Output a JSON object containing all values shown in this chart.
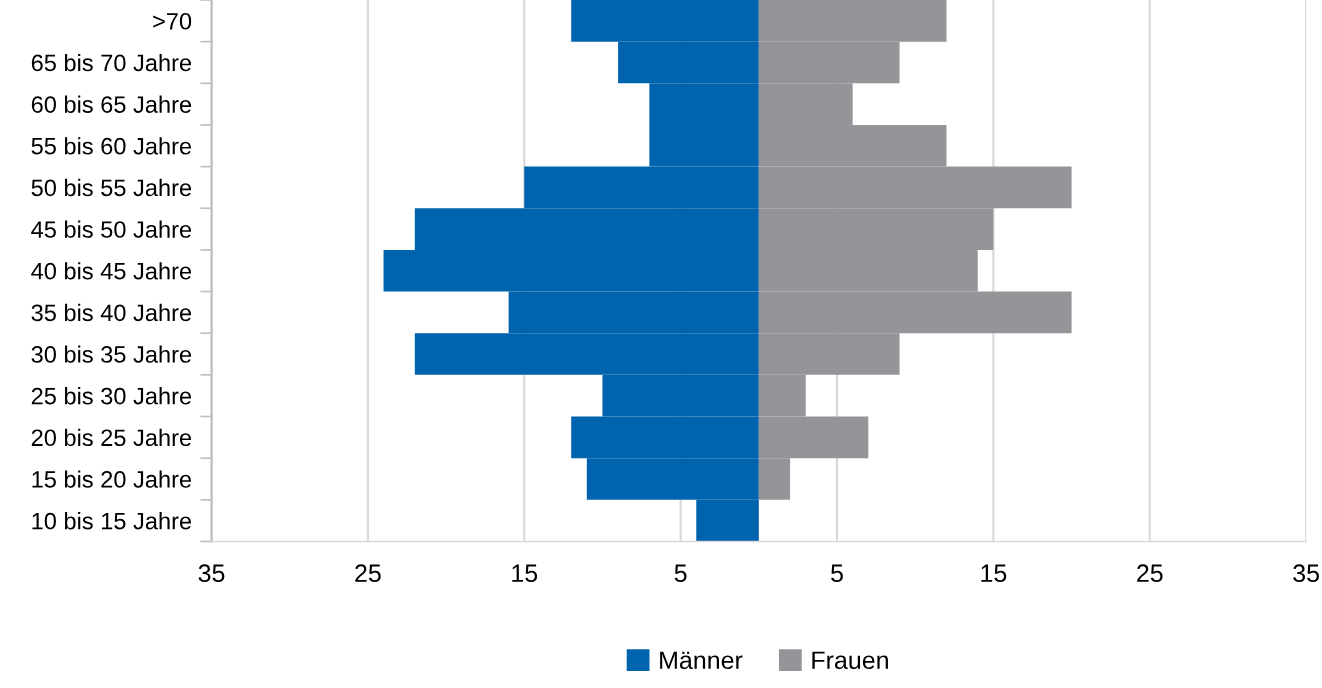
{
  "chart_data": {
    "type": "bar",
    "orientation": "horizontal",
    "categories": [
      ">70",
      "65 bis 70 Jahre",
      "60 bis 65 Jahre",
      "55 bis 60 Jahre",
      "50 bis 55 Jahre",
      "45 bis 50 Jahre",
      "40 bis 45 Jahre",
      "35 bis 40 Jahre",
      "30 bis 35 Jahre",
      "25 bis 30 Jahre",
      "20 bis 25 Jahre",
      "15 bis 20 Jahre",
      "10 bis 15 Jahre"
    ],
    "series": [
      {
        "name": "Männer",
        "color": "#0063ad",
        "values": [
          -12,
          -9,
          -7,
          -7,
          -15,
          -22,
          -24,
          -16,
          -22,
          -10,
          -12,
          -11,
          -4
        ]
      },
      {
        "name": "Frauen",
        "color": "#939598",
        "values": [
          12,
          9,
          6,
          12,
          20,
          15,
          14,
          20,
          9,
          3,
          7,
          2,
          0
        ]
      }
    ],
    "xlim": [
      -35,
      35
    ],
    "xticks": [
      {
        "value": -35,
        "label": "35"
      },
      {
        "value": -25,
        "label": "25"
      },
      {
        "value": -15,
        "label": "15"
      },
      {
        "value": -5,
        "label": "5"
      },
      5,
      15,
      25,
      35
    ],
    "stacked": true,
    "grid": "x",
    "legend": "bottom"
  }
}
